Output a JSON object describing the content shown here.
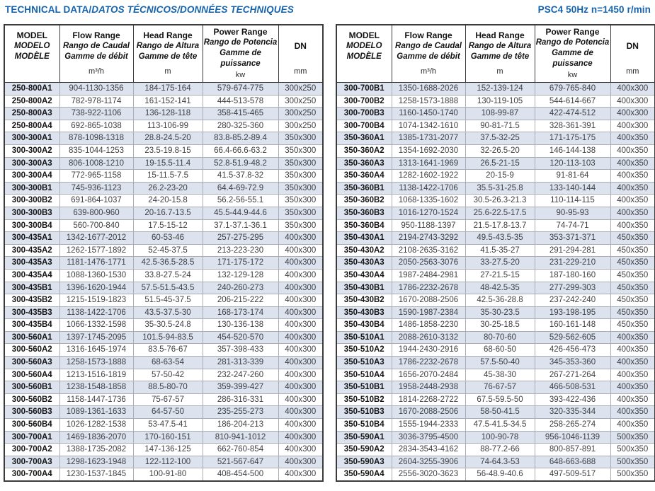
{
  "page": {
    "title_primary": "TECHNICAL DATA/",
    "title_secondary": "DATOS TÉCNICOS/DONNÉES TECHNIQUES",
    "spec": "PSC4 50Hz n=1450 r/min"
  },
  "colors": {
    "accent_blue": "#1563ac",
    "row_shade": "#dce2ee",
    "border_dark": "#3a3a3a"
  },
  "table_header": {
    "model_lines": [
      "MODEL",
      "MODELO",
      "MODÈLE"
    ],
    "flow": {
      "en": "Flow Range",
      "es": "Rango de Caudal",
      "fr": "Gamme de débit",
      "unit": "m³/h"
    },
    "head": {
      "en": "Head Range",
      "es": "Rango de Altura",
      "fr": "Gamme de tête",
      "unit": "m"
    },
    "power": {
      "en": "Power Range",
      "es": "Rango de Potencia",
      "fr": "Gamme de puissance",
      "unit": "kw"
    },
    "dn": {
      "label": "DN",
      "unit": "mm"
    }
  },
  "tables": {
    "left": {
      "rows": [
        [
          "250-800A1",
          "904-1130-1356",
          "184-175-164",
          "579-674-775",
          "300x250"
        ],
        [
          "250-800A2",
          "782-978-1174",
          "161-152-141",
          "444-513-578",
          "300x250"
        ],
        [
          "250-800A3",
          "738-922-1106",
          "136-128-118",
          "358-415-465",
          "300x250"
        ],
        [
          "250-800A4",
          "692-865-1038",
          "113-106-99",
          "280-325-360",
          "300x250"
        ],
        [
          "300-300A1",
          "878-1098-1318",
          "28.8-24.5-20",
          "83.8-85.2-89.4",
          "350x300"
        ],
        [
          "300-300A2",
          "835-1044-1253",
          "23.5-19.8-15",
          "66.4-66.6-63.2",
          "350x300"
        ],
        [
          "300-300A3",
          "806-1008-1210",
          "19-15.5-11.4",
          "52.8-51.9-48.2",
          "350x300"
        ],
        [
          "300-300A4",
          "772-965-1158",
          "15-11.5-7.5",
          "41.5-37.8-32",
          "350x300"
        ],
        [
          "300-300B1",
          "745-936-1123",
          "26.2-23-20",
          "64.4-69-72.9",
          "350x300"
        ],
        [
          "300-300B2",
          "691-864-1037",
          "24-20-15.8",
          "56.2-56-55.1",
          "350x300"
        ],
        [
          "300-300B3",
          "639-800-960",
          "20-16.7-13.5",
          "45.5-44.9-44.6",
          "350x300"
        ],
        [
          "300-300B4",
          "560-700-840",
          "17.5-15-12",
          "37.1-37.1-36.1",
          "350x300"
        ],
        [
          "300-435A1",
          "1342-1677-2012",
          "60-53-46",
          "257-275-295",
          "400x300"
        ],
        [
          "300-435A2",
          "1262-1577-1892",
          "52-45-37.5",
          "213-223-230",
          "400x300"
        ],
        [
          "300-435A3",
          "1181-1476-1771",
          "42.5-36.5-28.5",
          "171-175-172",
          "400x300"
        ],
        [
          "300-435A4",
          "1088-1360-1530",
          "33.8-27.5-24",
          "132-129-128",
          "400x300"
        ],
        [
          "300-435B1",
          "1396-1620-1944",
          "57.5-51.5-43.5",
          "240-260-273",
          "400x300"
        ],
        [
          "300-435B2",
          "1215-1519-1823",
          "51.5-45-37.5",
          "206-215-222",
          "400x300"
        ],
        [
          "300-435B3",
          "1138-1422-1706",
          "43.5-37.5-30",
          "168-173-174",
          "400x300"
        ],
        [
          "300-435B4",
          "1066-1332-1598",
          "35-30.5-24.8",
          "130-136-138",
          "400x300"
        ],
        [
          "300-560A1",
          "1397-1745-2095",
          "101.5-94-83.5",
          "454-520-570",
          "400x300"
        ],
        [
          "300-560A2",
          "1316-1645-1974",
          "83.5-76-67",
          "357-398-433",
          "400x300"
        ],
        [
          "300-560A3",
          "1258-1573-1888",
          "68-63-54",
          "281-313-339",
          "400x300"
        ],
        [
          "300-560A4",
          "1213-1516-1819",
          "57-50-42",
          "232-247-260",
          "400x300"
        ],
        [
          "300-560B1",
          "1238-1548-1858",
          "88.5-80-70",
          "359-399-427",
          "400x300"
        ],
        [
          "300-560B2",
          "1158-1447-1736",
          "75-67-57",
          "286-316-331",
          "400x300"
        ],
        [
          "300-560B3",
          "1089-1361-1633",
          "64-57-50",
          "235-255-273",
          "400x300"
        ],
        [
          "300-560B4",
          "1026-1282-1538",
          "53-47.5-41",
          "186-204-213",
          "400x300"
        ],
        [
          "300-700A1",
          "1469-1836-2070",
          "170-160-151",
          "810-941-1012",
          "400x300"
        ],
        [
          "300-700A2",
          "1388-1735-2082",
          "147-136-125",
          "662-760-854",
          "400x300"
        ],
        [
          "300-700A3",
          "1298-1623-1948",
          "122-112-100",
          "521-567-647",
          "400x300"
        ],
        [
          "300-700A4",
          "1230-1537-1845",
          "100-91-80",
          "408-454-500",
          "400x300"
        ]
      ]
    },
    "right": {
      "rows": [
        [
          "300-700B1",
          "1350-1688-2026",
          "152-139-124",
          "679-765-840",
          "400x300"
        ],
        [
          "300-700B2",
          "1258-1573-1888",
          "130-119-105",
          "544-614-667",
          "400x300"
        ],
        [
          "300-700B3",
          "1160-1450-1740",
          "108-99-87",
          "422-474-512",
          "400x300"
        ],
        [
          "300-700B4",
          "1074-1342-1610",
          "90-81-71.5",
          "328-361-391",
          "400x300"
        ],
        [
          "350-360A1",
          "1385-1731-2077",
          "37.5-32-25",
          "171-175-175",
          "400x350"
        ],
        [
          "350-360A2",
          "1354-1692-2030",
          "32-26.5-20",
          "146-144-138",
          "400x350"
        ],
        [
          "350-360A3",
          "1313-1641-1969",
          "26.5-21-15",
          "120-113-103",
          "400x350"
        ],
        [
          "350-360A4",
          "1282-1602-1922",
          "20-15-9",
          "91-81-64",
          "400x350"
        ],
        [
          "350-360B1",
          "1138-1422-1706",
          "35.5-31-25.8",
          "133-140-144",
          "400x350"
        ],
        [
          "350-360B2",
          "1068-1335-1602",
          "30.5-26.3-21.3",
          "110-114-115",
          "400x350"
        ],
        [
          "350-360B3",
          "1016-1270-1524",
          "25.6-22.5-17.5",
          "90-95-93",
          "400x350"
        ],
        [
          "350-360B4",
          "950-1188-1397",
          "21.5-17.8-13.7",
          "74-74-71",
          "400x350"
        ],
        [
          "350-430A1",
          "2194-2743-3292",
          "49.5-43.5-35",
          "353-371-371",
          "450x350"
        ],
        [
          "350-430A2",
          "2108-2635-3162",
          "41.5-35-27",
          "291-294-281",
          "450x350"
        ],
        [
          "350-430A3",
          "2050-2563-3076",
          "33-27.5-20",
          "231-229-210",
          "450x350"
        ],
        [
          "350-430A4",
          "1987-2484-2981",
          "27-21.5-15",
          "187-180-160",
          "450x350"
        ],
        [
          "350-430B1",
          "1786-2232-2678",
          "48-42.5-35",
          "277-299-303",
          "450x350"
        ],
        [
          "350-430B2",
          "1670-2088-2506",
          "42.5-36-28.8",
          "237-242-240",
          "450x350"
        ],
        [
          "350-430B3",
          "1590-1987-2384",
          "35-30-23.5",
          "193-198-195",
          "450x350"
        ],
        [
          "350-430B4",
          "1486-1858-2230",
          "30-25-18.5",
          "160-161-148",
          "450x350"
        ],
        [
          "350-510A1",
          "2088-2610-3132",
          "80-70-60",
          "529-562-605",
          "400x350"
        ],
        [
          "350-510A2",
          "1944-2430-2916",
          "68-60-50",
          "426-456-473",
          "400x350"
        ],
        [
          "350-510A3",
          "1786-2232-2678",
          "57.5-50-40",
          "345-353-360",
          "400x350"
        ],
        [
          "350-510A4",
          "1656-2070-2484",
          "45-38-30",
          "267-271-264",
          "400x350"
        ],
        [
          "350-510B1",
          "1958-2448-2938",
          "76-67-57",
          "466-508-531",
          "400x350"
        ],
        [
          "350-510B2",
          "1814-2268-2722",
          "67.5-59.5-50",
          "393-422-436",
          "400x350"
        ],
        [
          "350-510B3",
          "1670-2088-2506",
          "58-50-41.5",
          "320-335-344",
          "400x350"
        ],
        [
          "350-510B4",
          "1555-1944-2333",
          "47.5-41.5-34.5",
          "258-265-274",
          "400x350"
        ],
        [
          "350-590A1",
          "3036-3795-4500",
          "100-90-78",
          "956-1046-1139",
          "500x350"
        ],
        [
          "350-590A2",
          "2834-3543-4162",
          "88-77.2-66",
          "800-857-891",
          "500x350"
        ],
        [
          "350-590A3",
          "2604-3255-3906",
          "74-64.3-53",
          "648-663-688",
          "500x350"
        ],
        [
          "350-590A4",
          "2556-3020-3623",
          "56-48.9-40.6",
          "497-509-517",
          "500x350"
        ]
      ]
    }
  }
}
